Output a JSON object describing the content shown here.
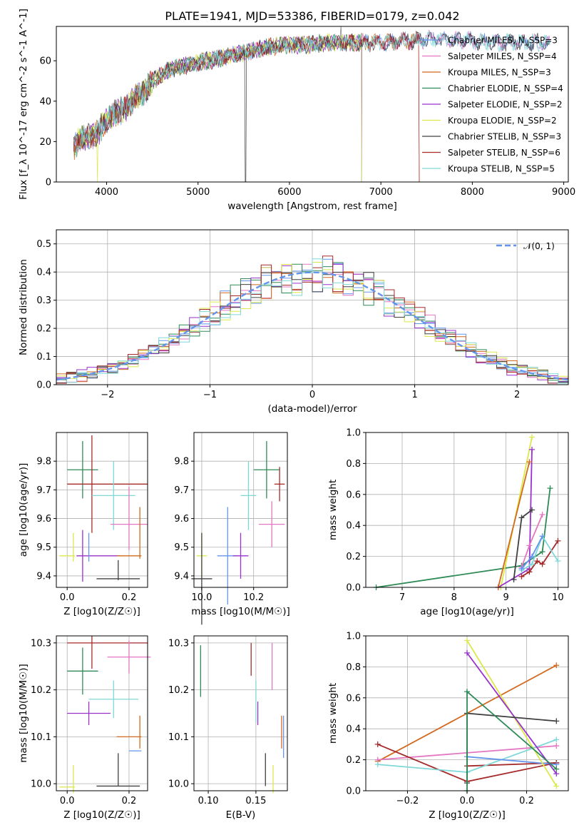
{
  "chart_data": [
    {
      "id": "spectrum",
      "type": "line",
      "title": "PLATE=1941, MJD=53386, FIBERID=0179, z=0.042",
      "xlabel": "wavelength [Angstrom, rest frame]",
      "ylabel": "Flux [f_λ 10^-17 erg cm^-2 s^-1 A^-1]",
      "xlim": [
        3450,
        9050
      ],
      "ylim": [
        0,
        77
      ],
      "xticks": [
        "4000",
        "5000",
        "6000",
        "7000",
        "8000",
        "9000"
      ],
      "yticks": [
        "0",
        "20",
        "40",
        "60"
      ],
      "grid": false,
      "legend_position": "top-right",
      "continuum": {
        "x": [
          3640,
          3700,
          3800,
          3900,
          4000,
          4100,
          4200,
          4300,
          4400,
          4500,
          4600,
          4700,
          4800,
          4900,
          5000,
          5200,
          5400,
          5600,
          5800,
          6000,
          6200,
          6400,
          6600,
          6800,
          7000,
          7200,
          7400,
          7600,
          7800,
          8000,
          8200,
          8400,
          8600,
          8800
        ],
        "y": [
          16,
          21,
          22,
          24,
          31,
          34,
          36,
          41,
          44,
          50,
          53,
          56,
          57,
          58,
          59,
          61,
          63,
          65,
          67,
          68,
          68,
          69,
          69,
          69,
          69,
          70,
          70,
          71,
          70,
          70,
          69,
          69,
          69,
          69
        ]
      },
      "series": [
        {
          "name": "Chabrier MILES, N_SSP=3",
          "color": "#6495ed",
          "x_end": 8850,
          "dropouts": []
        },
        {
          "name": "Salpeter MILES, N_SSP=4",
          "color": "#e377c2",
          "x_end": 8850,
          "dropouts": []
        },
        {
          "name": "Kroupa MILES, N_SSP=3",
          "color": "#d2691e",
          "x_end": 7420,
          "dropouts": [
            7420
          ]
        },
        {
          "name": "Chabrier ELODIE, N_SSP=4",
          "color": "#2e8b57",
          "x_end": 6790,
          "dropouts": []
        },
        {
          "name": "Salpeter ELODIE, N_SSP=2",
          "color": "#9932cc",
          "x_end": 6790,
          "dropouts": []
        },
        {
          "name": "Kroupa ELODIE, N_SSP=2",
          "color": "#dbe84c",
          "x_end": 6790,
          "dropouts": [
            3900,
            6790
          ]
        },
        {
          "name": "Chabrier STELIB, N_SSP=3",
          "color": "#404040",
          "x_end": 8850,
          "dropouts": [
            5520
          ]
        },
        {
          "name": "Salpeter STELIB, N_SSP=6",
          "color": "#a52a2a",
          "x_end": 7420,
          "dropouts": [
            7420
          ]
        },
        {
          "name": "Kroupa STELIB, N_SSP=5",
          "color": "#7fd8d8",
          "x_end": 8850,
          "dropouts": []
        }
      ]
    },
    {
      "id": "residuals",
      "type": "line",
      "xlabel": "(data-model)/error",
      "ylabel": "Normed distribution",
      "xlim": [
        -2.5,
        2.5
      ],
      "ylim": [
        0,
        0.55
      ],
      "xticks": [
        "−2",
        "−1",
        "0",
        "1",
        "2"
      ],
      "yticks": [
        "0.0",
        "0.1",
        "0.2",
        "0.3",
        "0.4",
        "0.5"
      ],
      "grid": true,
      "legend_position": "top-right",
      "legend_label": "𝒩(0, 1)",
      "bin_width": 0.1,
      "colors": [
        "#6495ed",
        "#e377c2",
        "#d2691e",
        "#2e8b57",
        "#9932cc",
        "#dbe84c",
        "#404040",
        "#a52a2a",
        "#7fd8d8"
      ],
      "normal_color": "#6495ed"
    },
    {
      "id": "age-vs-Z",
      "type": "scatter",
      "xlabel": "Z [log10(Z/Z☉)]",
      "ylabel": "age [log10(age/yr)]",
      "xlim": [
        -0.035,
        0.26
      ],
      "ylim": [
        9.36,
        9.9
      ],
      "xticks": [
        "0.0",
        "0.2"
      ],
      "yticks": [
        "9.4",
        "9.5",
        "9.6",
        "9.7",
        "9.8"
      ],
      "grid": true,
      "points": [
        {
          "x": 0.05,
          "y": 9.77,
          "xerr": 0.05,
          "yerr": 0.1,
          "color": "#2e8b57"
        },
        {
          "x": 0.13,
          "y": 9.72,
          "xerr": 0.13,
          "yerr": 0.0,
          "color": "#a52a2a"
        },
        {
          "x": 0.08,
          "y": 9.72,
          "xerr": 0.0,
          "yerr": 0.17,
          "color": "#a52a2a"
        },
        {
          "x": 0.15,
          "y": 9.68,
          "xerr": 0.07,
          "yerr": 0.12,
          "color": "#7fd8d8"
        },
        {
          "x": 0.2,
          "y": 9.6,
          "xerr": 0.0,
          "yerr": 0.11,
          "color": "#e377c2"
        },
        {
          "x": 0.2,
          "y": 9.58,
          "xerr": 0.06,
          "yerr": 0.0,
          "color": "#e377c2"
        },
        {
          "x": 0.235,
          "y": 9.55,
          "xerr": 0.0,
          "yerr": 0.09,
          "color": "#d2691e"
        },
        {
          "x": 0.1,
          "y": 9.47,
          "xerr": 0.07,
          "yerr": 0.0,
          "color": "#9932cc"
        },
        {
          "x": 0.05,
          "y": 9.47,
          "xerr": 0.0,
          "yerr": 0.09,
          "color": "#9932cc"
        },
        {
          "x": 0.2,
          "y": 9.47,
          "xerr": 0.04,
          "yerr": 0.0,
          "color": "#d2691e"
        },
        {
          "x": 0.0,
          "y": 9.47,
          "xerr": 0.025,
          "yerr": 0.0,
          "color": "#dbe84c"
        },
        {
          "x": 0.02,
          "y": 9.5,
          "xerr": 0.0,
          "yerr": 0.05,
          "color": "#dbe84c"
        },
        {
          "x": 0.07,
          "y": 9.5,
          "xerr": 0.0,
          "yerr": 0.05,
          "color": "#6495ed"
        },
        {
          "x": 0.165,
          "y": 9.39,
          "xerr": 0.07,
          "yerr": 0.0,
          "color": "#404040"
        },
        {
          "x": 0.165,
          "y": 9.42,
          "xerr": 0.0,
          "yerr": 0.035,
          "color": "#404040"
        }
      ]
    },
    {
      "id": "age-vs-mass",
      "type": "scatter",
      "xlabel": "mass [log10(M/M☉)]",
      "ylabel": "",
      "xlim": [
        9.97,
        10.33
      ],
      "ylim": [
        9.36,
        9.9
      ],
      "xticks": [
        "10.0",
        "10.2"
      ],
      "yticks": [
        "9.4",
        "9.5",
        "9.6",
        "9.7",
        "9.8"
      ],
      "grid": true,
      "points": [
        {
          "x": 10.25,
          "y": 9.77,
          "xerr": 0.05,
          "yerr": 0.1,
          "color": "#2e8b57"
        },
        {
          "x": 10.3,
          "y": 9.72,
          "xerr": 0.02,
          "yerr": 0.06,
          "color": "#a52a2a"
        },
        {
          "x": 10.18,
          "y": 9.68,
          "xerr": 0.03,
          "yerr": 0.12,
          "color": "#7fd8d8"
        },
        {
          "x": 10.27,
          "y": 9.58,
          "xerr": 0.05,
          "yerr": 0.08,
          "color": "#e377c2"
        },
        {
          "x": 10.1,
          "y": 9.47,
          "xerr": 0.04,
          "yerr": 0.17,
          "color": "#6495ed"
        },
        {
          "x": 10.15,
          "y": 9.47,
          "xerr": 0.03,
          "yerr": 0.08,
          "color": "#9932cc"
        },
        {
          "x": 10.0,
          "y": 9.47,
          "xerr": 0.02,
          "yerr": 0.08,
          "color": "#dbe84c"
        },
        {
          "x": 10.0,
          "y": 9.39,
          "xerr": 0.04,
          "yerr": 0.16,
          "color": "#404040"
        }
      ]
    },
    {
      "id": "weight-vs-age",
      "type": "line",
      "xlabel": "age [log10(age/yr)]",
      "ylabel": "mass weight",
      "xlim": [
        6.3,
        10.2
      ],
      "ylim": [
        0,
        1.0
      ],
      "xticks": [
        "7",
        "8",
        "9",
        "10"
      ],
      "yticks": [
        "0.0",
        "0.2",
        "0.4",
        "0.6",
        "0.8",
        "1.0"
      ],
      "grid": true,
      "series": [
        {
          "color": "#2e8b57",
          "x": [
            6.5,
            9.3,
            9.7,
            9.85
          ],
          "y": [
            0.0,
            0.14,
            0.23,
            0.64
          ]
        },
        {
          "color": "#dbe84c",
          "x": [
            8.9,
            9.5
          ],
          "y": [
            0.0,
            0.97
          ]
        },
        {
          "color": "#9932cc",
          "x": [
            8.85,
            9.45,
            9.5
          ],
          "y": [
            0.0,
            0.12,
            0.89
          ]
        },
        {
          "color": "#d2691e",
          "x": [
            8.85,
            9.45
          ],
          "y": [
            0.0,
            0.81
          ]
        },
        {
          "color": "#404040",
          "x": [
            9.15,
            9.3,
            9.5
          ],
          "y": [
            0.05,
            0.45,
            0.5
          ]
        },
        {
          "color": "#e377c2",
          "x": [
            9.3,
            9.45,
            9.7
          ],
          "y": [
            0.13,
            0.27,
            0.47
          ]
        },
        {
          "color": "#a52a2a",
          "x": [
            9.3,
            9.45,
            9.6,
            9.7,
            10.0
          ],
          "y": [
            0.07,
            0.1,
            0.17,
            0.15,
            0.3
          ]
        },
        {
          "color": "#7fd8d8",
          "x": [
            9.3,
            9.5,
            9.7,
            10.0
          ],
          "y": [
            0.11,
            0.15,
            0.33,
            0.17
          ]
        },
        {
          "color": "#6495ed",
          "x": [
            9.3,
            9.5,
            9.7
          ],
          "y": [
            0.12,
            0.2,
            0.33
          ]
        }
      ]
    },
    {
      "id": "mass-vs-Z",
      "type": "scatter",
      "xlabel": "Z [log10(Z/Z☉)]",
      "ylabel": "mass [log10(M/M☉)]",
      "xlim": [
        -0.035,
        0.26
      ],
      "ylim": [
        9.985,
        10.315
      ],
      "xticks": [
        "0.0",
        "0.2"
      ],
      "yticks": [
        "10.0",
        "10.1",
        "10.2",
        "10.3"
      ],
      "grid": true,
      "points": [
        {
          "x": 0.13,
          "y": 10.3,
          "xerr": 0.13,
          "yerr": 0.0,
          "color": "#a52a2a"
        },
        {
          "x": 0.08,
          "y": 10.28,
          "xerr": 0.0,
          "yerr": 0.035,
          "color": "#a52a2a"
        },
        {
          "x": 0.05,
          "y": 10.24,
          "xerr": 0.05,
          "yerr": 0.05,
          "color": "#2e8b57"
        },
        {
          "x": 0.2,
          "y": 10.27,
          "xerr": 0.07,
          "yerr": 0.035,
          "color": "#e377c2"
        },
        {
          "x": 0.15,
          "y": 10.18,
          "xerr": 0.08,
          "yerr": 0.04,
          "color": "#7fd8d8"
        },
        {
          "x": 0.07,
          "y": 10.15,
          "xerr": 0.07,
          "yerr": 0.025,
          "color": "#9932cc"
        },
        {
          "x": 0.235,
          "y": 10.11,
          "xerr": 0.0,
          "yerr": 0.035,
          "color": "#d2691e"
        },
        {
          "x": 0.2,
          "y": 10.1,
          "xerr": 0.04,
          "yerr": 0.0,
          "color": "#d2691e"
        },
        {
          "x": 0.22,
          "y": 10.07,
          "xerr": 0.02,
          "yerr": 0.0,
          "color": "#6495ed"
        },
        {
          "x": 0.0,
          "y": 9.993,
          "xerr": 0.025,
          "yerr": 0.0,
          "color": "#dbe84c"
        },
        {
          "x": 0.02,
          "y": 10.01,
          "xerr": 0.0,
          "yerr": 0.03,
          "color": "#dbe84c"
        },
        {
          "x": 0.165,
          "y": 9.995,
          "xerr": 0.07,
          "yerr": 0.0,
          "color": "#404040"
        },
        {
          "x": 0.165,
          "y": 10.03,
          "xerr": 0.0,
          "yerr": 0.035,
          "color": "#404040"
        }
      ]
    },
    {
      "id": "mass-vs-ebv",
      "type": "scatter",
      "xlabel": "E(B-V)",
      "ylabel": "",
      "xlim": [
        0.085,
        0.183
      ],
      "ylim": [
        9.985,
        10.315
      ],
      "xticks": [
        "0.10",
        "0.15"
      ],
      "yticks": [
        "10.0",
        "10.1",
        "10.2",
        "10.3"
      ],
      "grid": true,
      "points": [
        {
          "x": 0.092,
          "y": 10.24,
          "xerr": 0.0,
          "yerr": 0.055,
          "color": "#2e8b57"
        },
        {
          "x": 0.145,
          "y": 10.265,
          "xerr": 0.0,
          "yerr": 0.035,
          "color": "#a52a2a"
        },
        {
          "x": 0.167,
          "y": 10.25,
          "xerr": 0.0,
          "yerr": 0.05,
          "color": "#e377c2"
        },
        {
          "x": 0.15,
          "y": 10.175,
          "xerr": 0.0,
          "yerr": 0.045,
          "color": "#7fd8d8"
        },
        {
          "x": 0.152,
          "y": 10.15,
          "xerr": 0.0,
          "yerr": 0.025,
          "color": "#9932cc"
        },
        {
          "x": 0.177,
          "y": 10.11,
          "xerr": 0.0,
          "yerr": 0.035,
          "color": "#d2691e"
        },
        {
          "x": 0.179,
          "y": 10.1,
          "xerr": 0.0,
          "yerr": 0.045,
          "color": "#6495ed"
        },
        {
          "x": 0.16,
          "y": 10.03,
          "xerr": 0.0,
          "yerr": 0.035,
          "color": "#404040"
        },
        {
          "x": 0.168,
          "y": 10.01,
          "xerr": 0.0,
          "yerr": 0.03,
          "color": "#dbe84c"
        }
      ]
    },
    {
      "id": "weight-vs-Z",
      "type": "line",
      "xlabel": "Z [log10(Z/Z☉)]",
      "ylabel": "mass weight",
      "xlim": [
        -0.34,
        0.34
      ],
      "ylim": [
        0,
        1.0
      ],
      "xticks": [
        "−0.2",
        "0.0",
        "0.2"
      ],
      "yticks": [
        "0.0",
        "0.2",
        "0.4",
        "0.6",
        "0.8",
        "1.0"
      ],
      "grid": true,
      "series": [
        {
          "color": "#d2691e",
          "x": [
            -0.3,
            0.3
          ],
          "y": [
            0.19,
            0.81
          ]
        },
        {
          "color": "#e377c2",
          "x": [
            -0.3,
            0.3
          ],
          "y": [
            0.2,
            0.29
          ]
        },
        {
          "color": "#a52a2a",
          "x": [
            -0.3,
            0.0,
            0.3
          ],
          "y": [
            0.3,
            0.06,
            0.18
          ]
        },
        {
          "color": "#a52a2a",
          "x": [
            0.0,
            0.3
          ],
          "y": [
            0.16,
            0.18
          ]
        },
        {
          "color": "#7fd8d8",
          "x": [
            -0.3,
            0.0,
            0.3
          ],
          "y": [
            0.17,
            0.12,
            0.33
          ]
        },
        {
          "color": "#6495ed",
          "x": [
            0.0,
            0.3
          ],
          "y": [
            0.22,
            0.17
          ]
        },
        {
          "color": "#dbe84c",
          "x": [
            0.0,
            0.3
          ],
          "y": [
            0.97,
            0.03
          ]
        },
        {
          "color": "#9932cc",
          "x": [
            0.0,
            0.3
          ],
          "y": [
            0.89,
            0.11
          ]
        },
        {
          "color": "#404040",
          "x": [
            0.0,
            0.0,
            0.3
          ],
          "y": [
            0.05,
            0.5,
            0.45
          ]
        },
        {
          "color": "#2e8b57",
          "x": [
            0.0,
            0.0,
            0.3
          ],
          "y": [
            0.0,
            0.64,
            0.14
          ]
        }
      ]
    }
  ]
}
